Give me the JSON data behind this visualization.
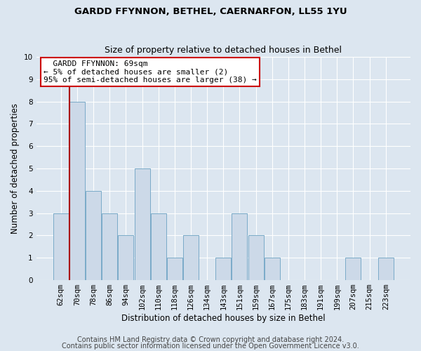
{
  "title1": "GARDD FFYNNON, BETHEL, CAERNARFON, LL55 1YU",
  "title2": "Size of property relative to detached houses in Bethel",
  "xlabel": "Distribution of detached houses by size in Bethel",
  "ylabel": "Number of detached properties",
  "categories": [
    "62sqm",
    "70sqm",
    "78sqm",
    "86sqm",
    "94sqm",
    "102sqm",
    "110sqm",
    "118sqm",
    "126sqm",
    "134sqm",
    "143sqm",
    "151sqm",
    "159sqm",
    "167sqm",
    "175sqm",
    "183sqm",
    "191sqm",
    "199sqm",
    "207sqm",
    "215sqm",
    "223sqm"
  ],
  "values": [
    3,
    8,
    4,
    3,
    2,
    5,
    3,
    1,
    2,
    0,
    1,
    3,
    2,
    1,
    0,
    0,
    0,
    0,
    1,
    0,
    1
  ],
  "bar_color": "#ccd9e8",
  "bar_edge_color": "#7aaac8",
  "highlight_bar_index": 1,
  "highlight_line_color": "#aa0000",
  "ylim": [
    0,
    10
  ],
  "yticks": [
    0,
    1,
    2,
    3,
    4,
    5,
    6,
    7,
    8,
    9,
    10
  ],
  "annotation_title": "GARDD FFYNNON: 69sqm",
  "annotation_line1": "← 5% of detached houses are smaller (2)",
  "annotation_line2": "95% of semi-detached houses are larger (38) →",
  "annotation_box_color": "#ffffff",
  "annotation_border_color": "#cc0000",
  "footer1": "Contains HM Land Registry data © Crown copyright and database right 2024.",
  "footer2": "Contains public sector information licensed under the Open Government Licence v3.0.",
  "bg_color": "#dce6f0",
  "plot_bg_color": "#dce6f0",
  "grid_color": "#ffffff",
  "title1_fontsize": 9.5,
  "title2_fontsize": 9,
  "xlabel_fontsize": 8.5,
  "ylabel_fontsize": 8.5,
  "tick_fontsize": 7.5,
  "footer_fontsize": 7,
  "annot_fontsize": 8
}
